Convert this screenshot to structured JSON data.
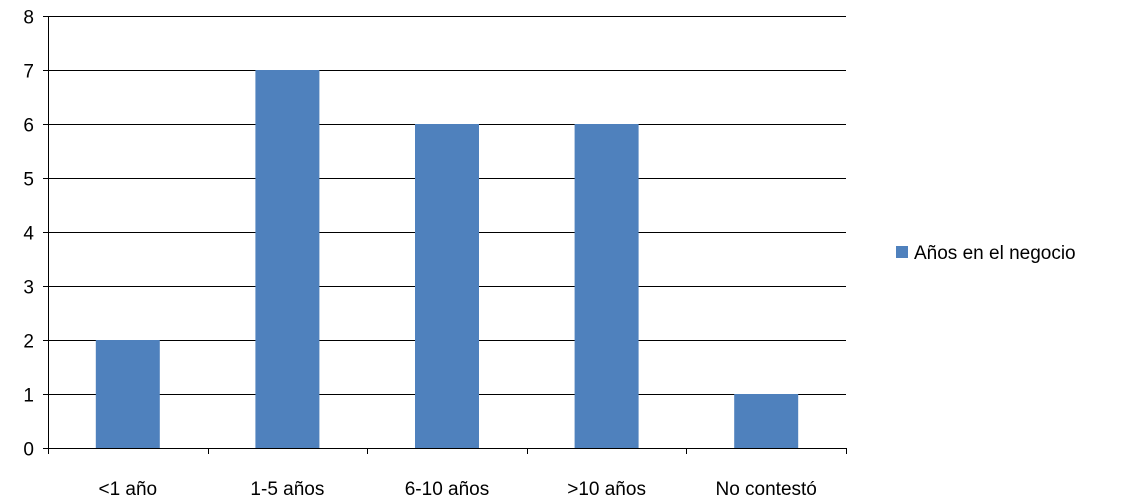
{
  "chart_data": {
    "type": "bar",
    "categories": [
      "<1 año",
      "1-5 años",
      "6-10 años",
      ">10 años",
      "No contestó"
    ],
    "series": [
      {
        "name": "Años en el negocio",
        "values": [
          2,
          7,
          6,
          6,
          1
        ],
        "color": "#4F81BD"
      }
    ],
    "title": "",
    "xlabel": "",
    "ylabel": "",
    "ylim": [
      0,
      8
    ],
    "yticks": [
      0,
      1,
      2,
      3,
      4,
      5,
      6,
      7,
      8
    ],
    "grid": true,
    "legend_position": "right"
  }
}
